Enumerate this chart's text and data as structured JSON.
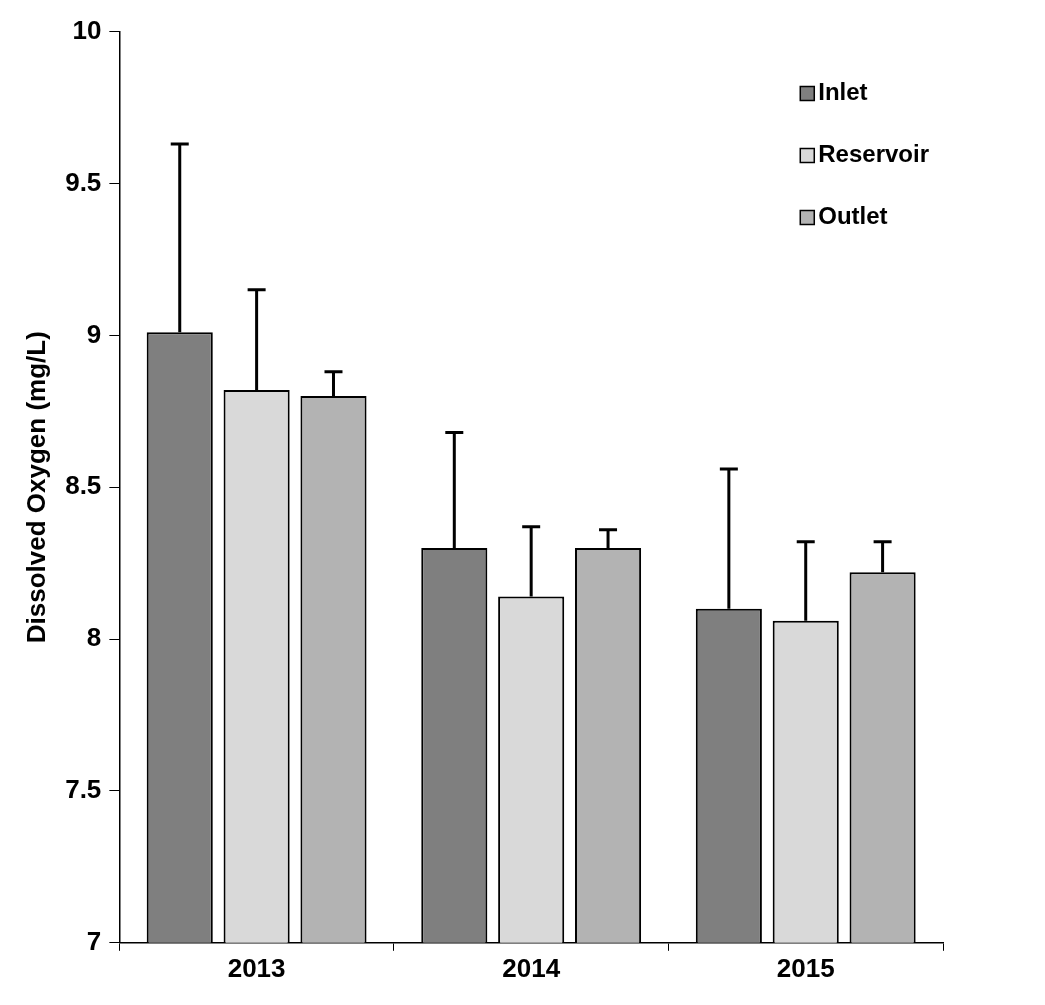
{
  "chart_data": {
    "type": "bar",
    "ylabel": "Dissolved Oxygen (mg/L)",
    "categories": [
      "2013",
      "2014",
      "2015"
    ],
    "series": [
      {
        "name": "Inlet",
        "color": "#7f7f7f",
        "values": [
          9.01,
          8.3,
          8.1
        ],
        "errors": [
          [
            9.01,
            9.63
          ],
          [
            8.3,
            8.68
          ],
          [
            8.1,
            8.56
          ]
        ]
      },
      {
        "name": "Reservoir",
        "color": "#d9d9d9",
        "values": [
          8.82,
          8.14,
          8.06
        ],
        "errors": [
          [
            8.82,
            9.15
          ],
          [
            8.14,
            8.37
          ],
          [
            8.06,
            8.32
          ]
        ]
      },
      {
        "name": "Outlet",
        "color": "#b3b3b3",
        "values": [
          8.8,
          8.3,
          8.22
        ],
        "errors": [
          [
            8.8,
            8.88
          ],
          [
            8.3,
            8.36
          ],
          [
            8.22,
            8.32
          ]
        ]
      }
    ],
    "ylim": [
      7,
      10
    ],
    "yticks": [
      7,
      7.5,
      8,
      8.5,
      9,
      9.5,
      10
    ],
    "grid": false,
    "legend": "top right"
  }
}
